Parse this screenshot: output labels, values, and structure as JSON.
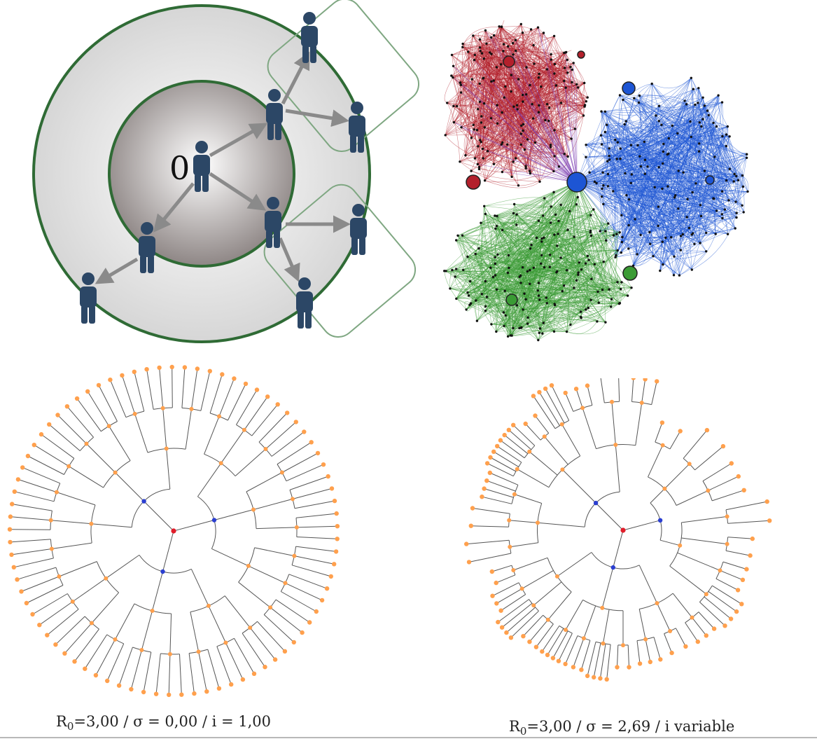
{
  "contact_diagram": {
    "index_label": "0",
    "colors": {
      "ring_stroke": "#2f6b35",
      "box_stroke": "#7fa782",
      "person": "#2c4766",
      "arrow": "#8a8a8a"
    }
  },
  "network_graph": {
    "cluster_colors": {
      "red": "#b3202c",
      "blue": "#1d55d4",
      "green": "#3a9b34",
      "purple": "#7d3fb2"
    },
    "node_color": "#111111"
  },
  "trees": {
    "colors": {
      "root": "#e11d2a",
      "hub": "#2b3fd1",
      "leaf": "#ffa04d",
      "branch": "#555555"
    },
    "left": {
      "caption_base": "R",
      "caption_sub": "0",
      "caption_rest": "=3,00 / σ = 0,00 / i = 1,00"
    },
    "right": {
      "caption_base": "R",
      "caption_sub": "0",
      "caption_rest": "=3,00 / σ = 2,69 / i variable"
    }
  }
}
